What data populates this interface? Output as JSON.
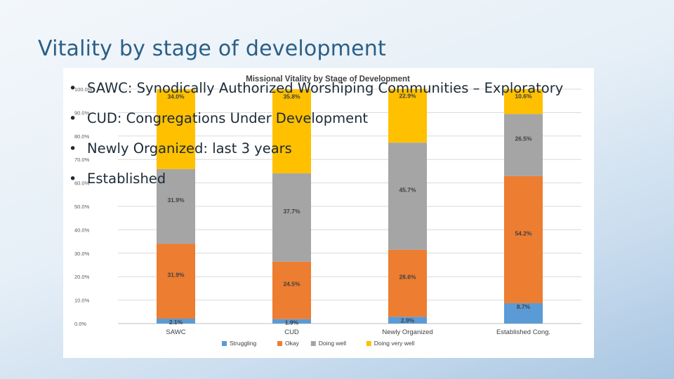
{
  "slide": {
    "title": "Vitality by stage of development",
    "bullets": [
      "SAWC: Synodically Authorized Worshiping Communities – Exploratory",
      "CUD: Congregations Under Development",
      "Newly Organized: last 3 years",
      "Established"
    ]
  },
  "chart_data": {
    "type": "bar",
    "stacked": true,
    "title": "Missional Vitality by Stage of Development",
    "xlabel": "",
    "ylabel": "",
    "ylim": [
      0,
      100
    ],
    "y_tick_labels": [
      "0.0%",
      "10.0%",
      "20.0%",
      "30.0%",
      "40.0%",
      "50.0%",
      "60.0%",
      "70.0%",
      "80.0%",
      "90.0%",
      "100.0%"
    ],
    "categories": [
      "SAWC",
      "CUD",
      "Newly Organized",
      "Established Cong."
    ],
    "series": [
      {
        "name": "Struggling",
        "color": "#5b9bd5",
        "values": [
          2.1,
          1.9,
          2.9,
          8.7
        ],
        "labels": [
          "2.1%",
          "1.9%",
          "2.9%",
          "8.7%"
        ]
      },
      {
        "name": "Okay",
        "color": "#ed7d31",
        "values": [
          31.9,
          24.5,
          28.6,
          54.2
        ],
        "labels": [
          "31.9%",
          "24.5%",
          "28.6%",
          "54.2%"
        ]
      },
      {
        "name": "Doing well",
        "color": "#a5a5a5",
        "values": [
          31.9,
          37.7,
          45.7,
          26.5
        ],
        "labels": [
          "31.9%",
          "37.7%",
          "45.7%",
          "26.5%"
        ]
      },
      {
        "name": "Doing very well",
        "color": "#ffc000",
        "values": [
          34.0,
          35.8,
          22.9,
          10.6
        ],
        "labels": [
          "34.0%",
          "35.8%",
          "22.9%",
          "10.6%"
        ]
      }
    ],
    "grid": true,
    "legend": "bottom"
  }
}
